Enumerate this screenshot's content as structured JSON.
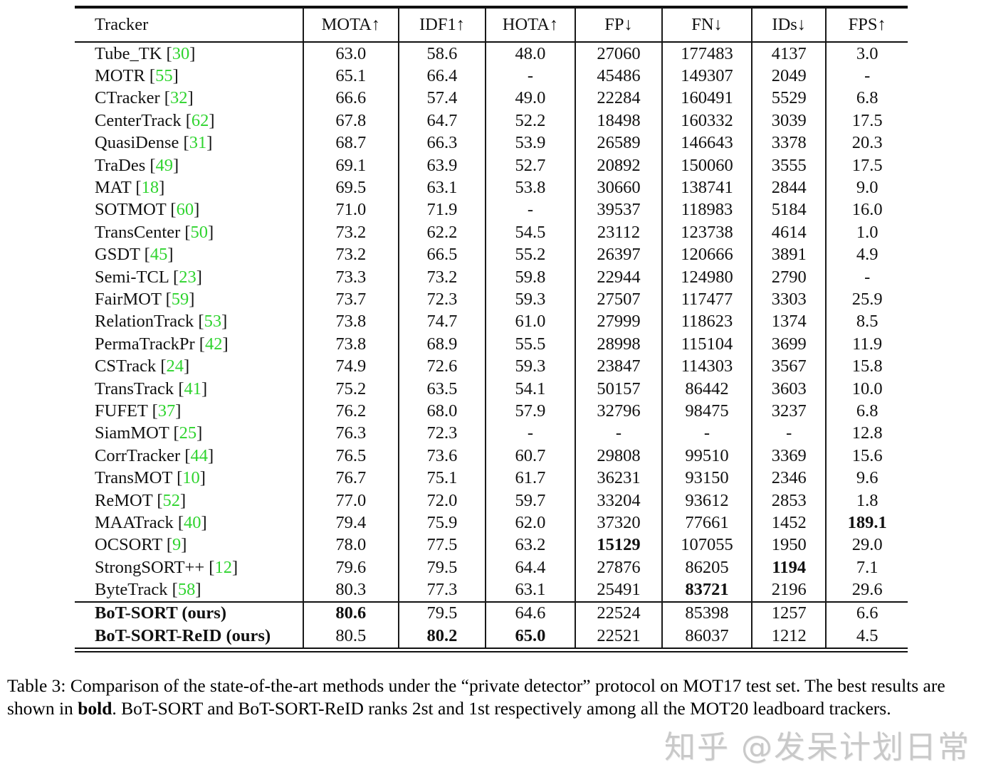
{
  "colors": {
    "accent_green": "#2fd42f",
    "text": "#111111",
    "rule": "#111111",
    "watermark_gray": "#c9c9c9"
  },
  "table": {
    "columns": [
      "Tracker",
      "MOTA↑",
      "IDF1↑",
      "HOTA↑",
      "FP↓",
      "FN↓",
      "IDs↓",
      "FPS↑"
    ],
    "col_widths_pct": [
      27.4,
      11.5,
      10.4,
      10.8,
      10.4,
      10.8,
      8.9,
      9.8
    ],
    "rows": [
      {
        "tracker": "Tube_TK",
        "ref": "30",
        "values": [
          "63.0",
          "58.6",
          "48.0",
          "27060",
          "177483",
          "4137",
          "3.0"
        ],
        "bold_values": [],
        "bold_name": false,
        "rule_above": false
      },
      {
        "tracker": "MOTR",
        "ref": "55",
        "values": [
          "65.1",
          "66.4",
          "-",
          "45486",
          "149307",
          "2049",
          "-"
        ],
        "bold_values": [],
        "bold_name": false,
        "rule_above": false
      },
      {
        "tracker": "CTracker",
        "ref": "32",
        "values": [
          "66.6",
          "57.4",
          "49.0",
          "22284",
          "160491",
          "5529",
          "6.8"
        ],
        "bold_values": [],
        "bold_name": false,
        "rule_above": false
      },
      {
        "tracker": "CenterTrack",
        "ref": "62",
        "values": [
          "67.8",
          "64.7",
          "52.2",
          "18498",
          "160332",
          "3039",
          "17.5"
        ],
        "bold_values": [],
        "bold_name": false,
        "rule_above": false
      },
      {
        "tracker": "QuasiDense",
        "ref": "31",
        "values": [
          "68.7",
          "66.3",
          "53.9",
          "26589",
          "146643",
          "3378",
          "20.3"
        ],
        "bold_values": [],
        "bold_name": false,
        "rule_above": false
      },
      {
        "tracker": "TraDes",
        "ref": "49",
        "values": [
          "69.1",
          "63.9",
          "52.7",
          "20892",
          "150060",
          "3555",
          "17.5"
        ],
        "bold_values": [],
        "bold_name": false,
        "rule_above": false
      },
      {
        "tracker": "MAT",
        "ref": "18",
        "values": [
          "69.5",
          "63.1",
          "53.8",
          "30660",
          "138741",
          "2844",
          "9.0"
        ],
        "bold_values": [],
        "bold_name": false,
        "rule_above": false
      },
      {
        "tracker": "SOTMOT",
        "ref": "60",
        "values": [
          "71.0",
          "71.9",
          "-",
          "39537",
          "118983",
          "5184",
          "16.0"
        ],
        "bold_values": [],
        "bold_name": false,
        "rule_above": false
      },
      {
        "tracker": "TransCenter",
        "ref": "50",
        "values": [
          "73.2",
          "62.2",
          "54.5",
          "23112",
          "123738",
          "4614",
          "1.0"
        ],
        "bold_values": [],
        "bold_name": false,
        "rule_above": false
      },
      {
        "tracker": "GSDT",
        "ref": "45",
        "values": [
          "73.2",
          "66.5",
          "55.2",
          "26397",
          "120666",
          "3891",
          "4.9"
        ],
        "bold_values": [],
        "bold_name": false,
        "rule_above": false
      },
      {
        "tracker": "Semi-TCL",
        "ref": "23",
        "values": [
          "73.3",
          "73.2",
          "59.8",
          "22944",
          "124980",
          "2790",
          "-"
        ],
        "bold_values": [],
        "bold_name": false,
        "rule_above": false
      },
      {
        "tracker": "FairMOT",
        "ref": "59",
        "values": [
          "73.7",
          "72.3",
          "59.3",
          "27507",
          "117477",
          "3303",
          "25.9"
        ],
        "bold_values": [],
        "bold_name": false,
        "rule_above": false
      },
      {
        "tracker": "RelationTrack",
        "ref": "53",
        "values": [
          "73.8",
          "74.7",
          "61.0",
          "27999",
          "118623",
          "1374",
          "8.5"
        ],
        "bold_values": [],
        "bold_name": false,
        "rule_above": false
      },
      {
        "tracker": "PermaTrackPr",
        "ref": "42",
        "values": [
          "73.8",
          "68.9",
          "55.5",
          "28998",
          "115104",
          "3699",
          "11.9"
        ],
        "bold_values": [],
        "bold_name": false,
        "rule_above": false
      },
      {
        "tracker": "CSTrack",
        "ref": "24",
        "values": [
          "74.9",
          "72.6",
          "59.3",
          "23847",
          "114303",
          "3567",
          "15.8"
        ],
        "bold_values": [],
        "bold_name": false,
        "rule_above": false
      },
      {
        "tracker": "TransTrack",
        "ref": "41",
        "values": [
          "75.2",
          "63.5",
          "54.1",
          "50157",
          "86442",
          "3603",
          "10.0"
        ],
        "bold_values": [],
        "bold_name": false,
        "rule_above": false
      },
      {
        "tracker": "FUFET",
        "ref": "37",
        "values": [
          "76.2",
          "68.0",
          "57.9",
          "32796",
          "98475",
          "3237",
          "6.8"
        ],
        "bold_values": [],
        "bold_name": false,
        "rule_above": false
      },
      {
        "tracker": "SiamMOT",
        "ref": "25",
        "values": [
          "76.3",
          "72.3",
          "-",
          "-",
          "-",
          "-",
          "12.8"
        ],
        "bold_values": [],
        "bold_name": false,
        "rule_above": false
      },
      {
        "tracker": "CorrTracker",
        "ref": "44",
        "values": [
          "76.5",
          "73.6",
          "60.7",
          "29808",
          "99510",
          "3369",
          "15.6"
        ],
        "bold_values": [],
        "bold_name": false,
        "rule_above": false
      },
      {
        "tracker": "TransMOT",
        "ref": "10",
        "values": [
          "76.7",
          "75.1",
          "61.7",
          "36231",
          "93150",
          "2346",
          "9.6"
        ],
        "bold_values": [],
        "bold_name": false,
        "rule_above": false
      },
      {
        "tracker": "ReMOT",
        "ref": "52",
        "values": [
          "77.0",
          "72.0",
          "59.7",
          "33204",
          "93612",
          "2853",
          "1.8"
        ],
        "bold_values": [],
        "bold_name": false,
        "rule_above": false
      },
      {
        "tracker": "MAATrack",
        "ref": "40",
        "values": [
          "79.4",
          "75.9",
          "62.0",
          "37320",
          "77661",
          "1452",
          "189.1"
        ],
        "bold_values": [
          6
        ],
        "bold_name": false,
        "rule_above": false
      },
      {
        "tracker": "OCSORT",
        "ref": "9",
        "values": [
          "78.0",
          "77.5",
          "63.2",
          "15129",
          "107055",
          "1950",
          "29.0"
        ],
        "bold_values": [
          3
        ],
        "bold_name": false,
        "rule_above": false
      },
      {
        "tracker": "StrongSORT++",
        "ref": "12",
        "values": [
          "79.6",
          "79.5",
          "64.4",
          "27876",
          "86205",
          "1194",
          "7.1"
        ],
        "bold_values": [
          5
        ],
        "bold_name": false,
        "rule_above": false
      },
      {
        "tracker": "ByteTrack",
        "ref": "58",
        "values": [
          "80.3",
          "77.3",
          "63.1",
          "25491",
          "83721",
          "2196",
          "29.6"
        ],
        "bold_values": [
          4
        ],
        "bold_name": false,
        "rule_above": false
      },
      {
        "tracker": "BoT-SORT (ours)",
        "ref": null,
        "values": [
          "80.6",
          "79.5",
          "64.6",
          "22524",
          "85398",
          "1257",
          "6.6"
        ],
        "bold_values": [
          0
        ],
        "bold_name": true,
        "rule_above": true
      },
      {
        "tracker": "BoT-SORT-ReID (ours)",
        "ref": null,
        "values": [
          "80.5",
          "80.2",
          "65.0",
          "22521",
          "86037",
          "1212",
          "4.5"
        ],
        "bold_values": [
          1,
          2
        ],
        "bold_name": true,
        "rule_above": false
      }
    ]
  },
  "caption": {
    "part1": "Table 3: Comparison of the state-of-the-art methods under the “private detector” protocol on MOT17 test set. The best results are shown in ",
    "bold_word": "bold",
    "part2": ". BoT-SORT and BoT-SORT-ReID ranks 2st and 1st respectively among all the MOT20 leadboard trackers."
  },
  "watermark": {
    "text": "知乎 @发呆计划日常"
  }
}
